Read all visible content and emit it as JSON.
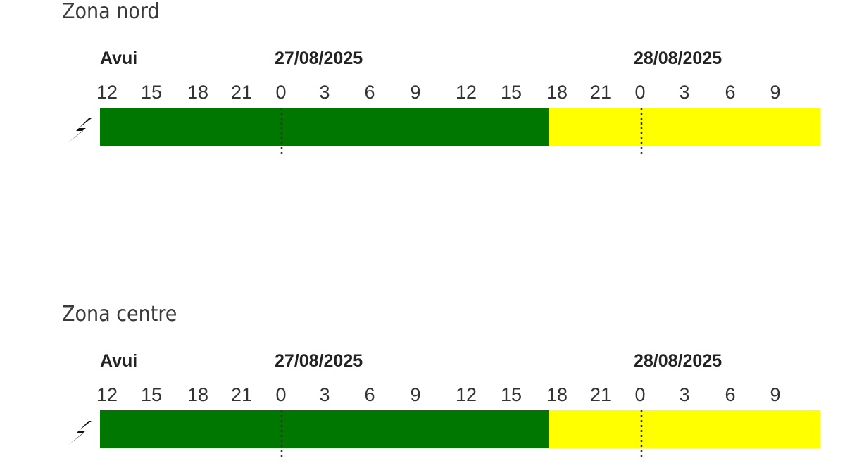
{
  "zones": [
    {
      "title": "Zona nord",
      "dates": [
        "Avui",
        "27/08/2025",
        "28/08/2025"
      ],
      "hours": [
        "12",
        "15",
        "18",
        "21",
        "0",
        "3",
        "6",
        "9",
        "12",
        "15",
        "18",
        "21",
        "0",
        "3",
        "6",
        "9"
      ],
      "segments": [
        {
          "color": "#007800"
        },
        {
          "color": "#ffff00"
        }
      ]
    },
    {
      "title": "Zona centre",
      "dates": [
        "Avui",
        "27/08/2025",
        "28/08/2025"
      ],
      "hours": [
        "12",
        "15",
        "18",
        "21",
        "0",
        "3",
        "6",
        "9",
        "12",
        "15",
        "18",
        "21",
        "0",
        "3",
        "6",
        "9"
      ],
      "segments": [
        {
          "color": "#007800"
        },
        {
          "color": "#ffff00"
        }
      ]
    }
  ]
}
